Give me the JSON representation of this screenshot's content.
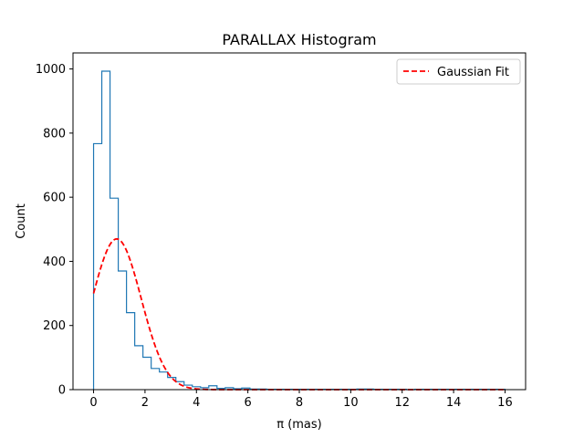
{
  "chart_data": {
    "type": "histogram",
    "title": "PARALLAX Histogram",
    "xlabel": "π (mas)",
    "ylabel": "Count",
    "xlim": [
      -0.8,
      16.8
    ],
    "ylim": [
      0,
      1050
    ],
    "xticks": [
      0,
      2,
      4,
      6,
      8,
      10,
      12,
      14,
      16
    ],
    "yticks": [
      0,
      200,
      400,
      600,
      800,
      1000
    ],
    "grid": false,
    "legend_position": "top-right",
    "colors": {
      "histogram": "#1f77b4",
      "fit": "#ff0000"
    },
    "histogram": {
      "bin_edges": [
        0.0,
        0.32,
        0.64,
        0.96,
        1.28,
        1.6,
        1.92,
        2.24,
        2.56,
        2.88,
        3.2,
        3.52,
        3.84,
        4.16,
        4.48,
        4.8,
        5.12,
        5.44,
        5.76,
        6.08,
        6.4,
        6.72,
        7.04,
        7.36,
        7.68,
        8.0,
        8.32,
        8.64,
        8.96,
        9.28,
        9.6,
        9.92,
        10.24,
        10.56,
        10.88,
        11.2,
        11.52,
        11.84,
        12.16,
        12.48,
        12.8,
        13.12,
        13.44,
        13.76,
        14.08,
        14.4,
        14.72,
        15.04,
        15.36,
        15.68,
        16.0
      ],
      "counts": [
        767,
        993,
        597,
        370,
        240,
        137,
        101,
        66,
        55,
        38,
        25,
        14,
        9,
        6,
        12,
        4,
        6,
        3,
        5,
        2,
        2,
        1,
        1,
        1,
        1,
        1,
        1,
        1,
        1,
        1,
        1,
        1,
        2,
        2,
        1,
        1,
        1,
        1,
        0,
        1,
        1,
        1,
        1,
        1,
        1,
        1,
        1,
        1,
        1,
        1
      ]
    },
    "series": [
      {
        "name": "Gaussian Fit",
        "type": "line",
        "style": "dashed",
        "amplitude": 470,
        "mean": 0.9,
        "sigma": 0.95
      }
    ]
  }
}
